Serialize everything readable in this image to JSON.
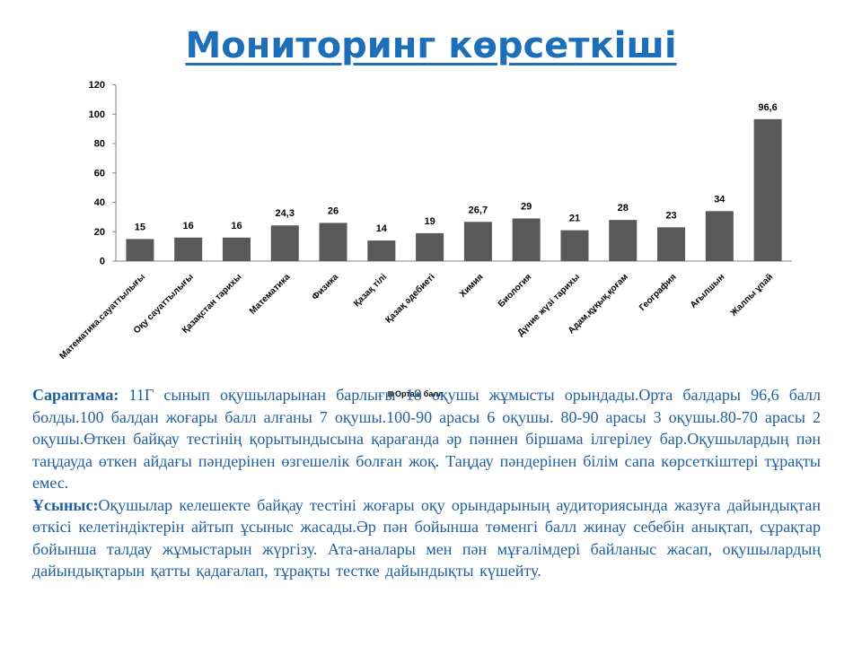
{
  "slide": {
    "title": "Мониторинг көрсеткіші"
  },
  "chart_data": {
    "type": "bar",
    "categories": [
      "Математика.сауаттылығы",
      "Оқу сауаттылығы",
      "Қазақстан тарихы",
      "Математика",
      "Физика",
      "Қазақ тілі",
      "Қазақ әдебиеті",
      "Химия",
      "Биология",
      "Дүние жүзі тарихы",
      "Адам,құқық,қоғам",
      "География",
      "Ағылшын",
      "Жалпы ұпай"
    ],
    "series": [
      {
        "name": "Орташ балл",
        "values": [
          15,
          16,
          16,
          24.3,
          26,
          14,
          19,
          26.7,
          29,
          21,
          28,
          23,
          34,
          96.6
        ],
        "labels": [
          "15",
          "16",
          "16",
          "24,3",
          "26",
          "14",
          "19",
          "26,7",
          "29",
          "21",
          "28",
          "23",
          "34",
          "96,6"
        ]
      }
    ],
    "yticks": [
      "0",
      "20",
      "40",
      "60",
      "80",
      "100",
      "120"
    ],
    "ylim": [
      0,
      120
    ],
    "grid": false,
    "legend_position": "bottom",
    "bar_color": "#595959"
  },
  "analysis": {
    "p1_lead": "Сараптама:",
    "p1_text": " 11Г сынып оқушыларынан барлығы 18 оқушы жұмысты орындады.Орта балдары 96,6 балл болды.100 балдан жоғары балл алғаны 7 оқушы.100-90 арасы 6 оқушы. 80-90 арасы 3 оқушы.80-70 арасы 2 оқушы.Өткен байқау тестінің қорытындысына қарағанда әр пәннен біршама ілгерілеу бар.Оқушылардың пән таңдауда өткен айдағы пәндерінен өзгешелік болған жоқ. Таңдау пәндерінен білім сапа көрсеткіштері тұрақты емес.",
    "p2_lead": "Ұсыныс:",
    "p2_text": "Оқушылар келешекте байқау тестіні жоғары оқу орындарының аудиториясында жазуға дайындықтан өткісі келетіндіктерін айтып ұсыныс жасады.Әр пән бойынша төменгі балл жинау себебін анықтап, сұрақтар бойынша талдау жұмыстарын жүргізу. Ата-аналары мен пән мұғалімдері байланыс жасап, оқушылардың дайындықтарын қатты қадағалап, тұрақты тестке дайындықты күшейту."
  }
}
